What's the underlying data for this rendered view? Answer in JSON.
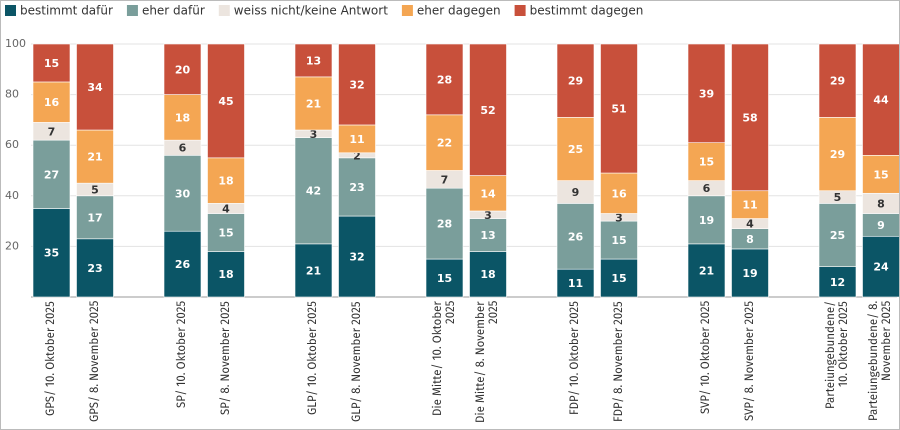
{
  "chart_data": {
    "type": "stacked-bar",
    "categories": [
      "GPS/ 10. Oktober 2025",
      "GPS/ 8. November 2025",
      "SP/ 10. Oktober 2025",
      "SP/ 8. November 2025",
      "GLP/ 10. Oktober 2025",
      "GLP/ 8. November 2025",
      "Die Mitte/ 10. Oktober 2025",
      "Die Mitte/ 8. November 2025",
      "FDP/ 10. Oktober 2025",
      "FDP/ 8. November 2025",
      "SVP/ 10. Oktober 2025",
      "SVP/ 8. November 2025",
      "Parteiungebundene/ 10. Oktober 2025",
      "Parteiungebundene/ 8. November 2025"
    ],
    "series": [
      {
        "name": "bestimmt dafür",
        "color": "#0b5566",
        "values": [
          35,
          23,
          26,
          18,
          21,
          32,
          15,
          18,
          11,
          15,
          21,
          19,
          12,
          24
        ]
      },
      {
        "name": "eher dafür",
        "color": "#7a9e9b",
        "values": [
          27,
          17,
          30,
          15,
          42,
          23,
          28,
          13,
          26,
          15,
          19,
          8,
          25,
          9
        ]
      },
      {
        "name": "weiss nicht/keine Antwort",
        "color": "#ece5df",
        "values": [
          7,
          5,
          6,
          4,
          3,
          2,
          7,
          3,
          9,
          3,
          6,
          4,
          5,
          8
        ]
      },
      {
        "name": "eher dagegen",
        "color": "#f4a653",
        "values": [
          16,
          21,
          18,
          18,
          21,
          11,
          22,
          14,
          25,
          16,
          15,
          11,
          29,
          15
        ]
      },
      {
        "name": "bestimmt dagegen",
        "color": "#c8503b",
        "values": [
          15,
          34,
          20,
          45,
          13,
          32,
          28,
          52,
          29,
          51,
          39,
          58,
          29,
          44
        ]
      }
    ],
    "ylim": [
      0,
      100
    ],
    "yticks": [
      20,
      40,
      60,
      80,
      100
    ],
    "grid": true
  }
}
